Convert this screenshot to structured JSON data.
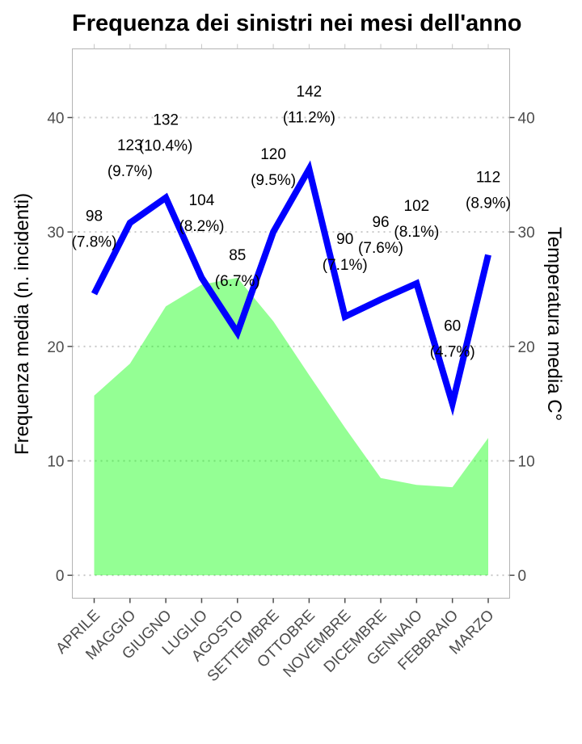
{
  "chart_data": {
    "type": "line",
    "title": "Frequenza dei sinistri nei mesi dell'anno",
    "ylabel": "Frequenza media (n. incidenti)",
    "y2label": "Temperatura media C°",
    "ylim": [
      -2,
      46
    ],
    "y_ticks": [
      0,
      10,
      20,
      30,
      40
    ],
    "grid": "horizontal dotted",
    "categories": [
      "APRILE",
      "MAGGIO",
      "GIUGNO",
      "LUGLIO",
      "AGOSTO",
      "SETTEMBRE",
      "OTTOBRE",
      "NOVEMBRE",
      "DICEMBRE",
      "GENNAIO",
      "FEBBRAIO",
      "MARZO"
    ],
    "series": [
      {
        "type": "line",
        "color": "#0000ff",
        "values": [
          24.6,
          30.8,
          33.0,
          26.0,
          21.2,
          30.0,
          35.5,
          22.6,
          24.1,
          25.5,
          15.0,
          28.0
        ],
        "labels": [
          "98\n(7.8%)",
          "123\n(9.7%)",
          "132\n(10.4%)",
          "104\n(8.2%)",
          "85\n(6.7%)",
          "120\n(9.5%)",
          "142\n(11.2%)",
          "90\n(7.1%)",
          "96\n(7.6%)",
          "102\n(8.1%)",
          "60\n(4.7%)",
          "112\n(8.9%)"
        ]
      },
      {
        "type": "area",
        "color": "#00ff00",
        "values": [
          15.7,
          18.5,
          23.5,
          25.4,
          26.0,
          22.2,
          17.5,
          12.9,
          8.5,
          7.9,
          7.7,
          12.0
        ]
      }
    ]
  }
}
